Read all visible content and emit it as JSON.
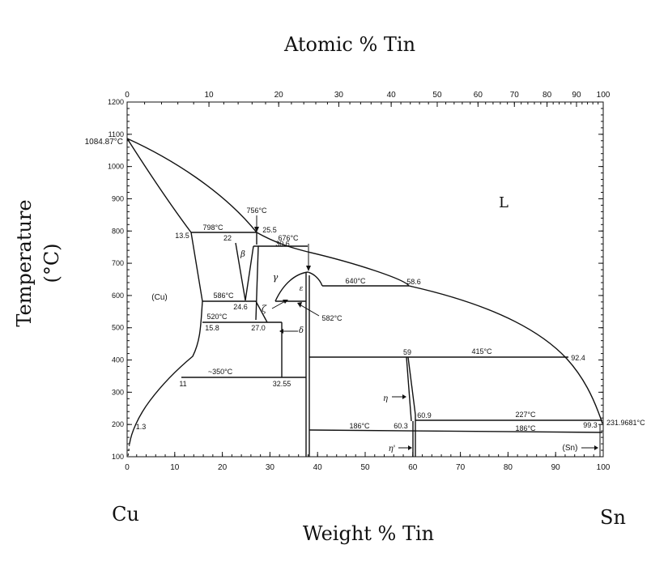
{
  "titles": {
    "top": "Atomic % Tin",
    "bottom": "Weight % Tin",
    "left_line1": "Temperature",
    "left_line2": "(°C)",
    "left_element": "Cu",
    "right_element": "Sn"
  },
  "axes": {
    "weight_ticks": [
      "0",
      "10",
      "20",
      "30",
      "40",
      "50",
      "60",
      "70",
      "80",
      "90",
      "100"
    ],
    "atomic_ticks": [
      "0",
      "10",
      "20",
      "30",
      "40",
      "50",
      "60",
      "70",
      "80",
      "90",
      "100"
    ],
    "temp_ticks": [
      "100",
      "200",
      "300",
      "400",
      "500",
      "600",
      "700",
      "800",
      "900",
      "1000",
      "1100",
      "1200"
    ],
    "cu_melt": "1084.87°C"
  },
  "labels": {
    "phase_L": "L",
    "phase_cu": "(Cu)",
    "phase_sn": "(Sn)",
    "beta": "β",
    "gamma": "γ",
    "zeta": "ζ",
    "delta": "δ",
    "epsilon": "ε",
    "eta": "η",
    "eta_prime": "η'",
    "t798": "798°C",
    "t756": "756°C",
    "t676": "676°C",
    "t640": "640°C",
    "t586": "586°C",
    "t582": "582°C",
    "t520": "520°C",
    "t350": "~350°C",
    "t415": "415°C",
    "t227": "227°C",
    "t186a": "186°C",
    "t186b": "186°C",
    "t231": "231.9681°C",
    "c13_5": "13.5",
    "c22": "22",
    "c25_5": "25.5",
    "c30_6": "30.6",
    "c24_6": "24.6",
    "c15_8": "15.8",
    "c27_0": "27.0",
    "c11": "11",
    "c32_55": "32.55",
    "c58_6": "58.6",
    "c59": "59",
    "c92_4": "92.4",
    "c60_9": "60.9",
    "c60_3": "60.3",
    "c99_3": "99.3",
    "c1_3": "1.3"
  }
}
